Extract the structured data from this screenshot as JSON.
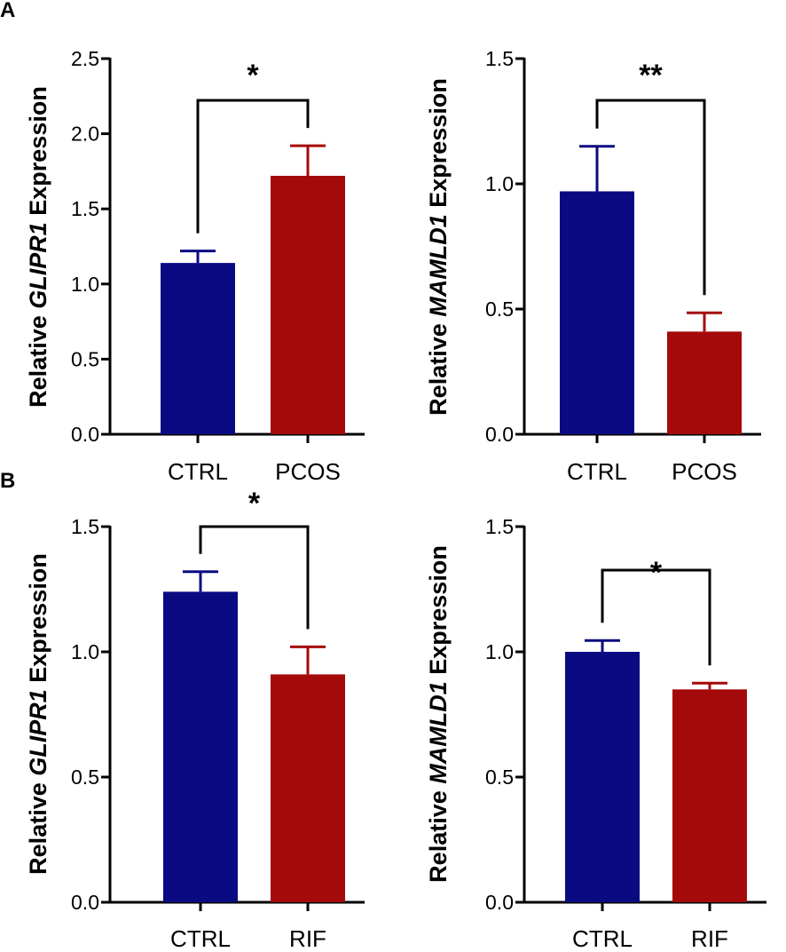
{
  "panels": [
    {
      "letter": "A"
    },
    {
      "letter": "B"
    }
  ],
  "colors": {
    "ctrl": "#0a0a82",
    "case": "#a50a0a",
    "axis": "#000000"
  },
  "chart_data": [
    {
      "type": "bar",
      "panel": "A",
      "categories": [
        "CTRL",
        "PCOS"
      ],
      "values": [
        1.14,
        1.72
      ],
      "errors": [
        0.08,
        0.2
      ],
      "ylabel_prefix": "Relative ",
      "ylabel_gene": "GLIPR1",
      "ylabel_suffix": " Expression",
      "ylim": [
        0,
        2.5
      ],
      "yticks": [
        0.0,
        0.5,
        1.0,
        1.5,
        2.0,
        2.5
      ],
      "significance": "*"
    },
    {
      "type": "bar",
      "panel": "A",
      "categories": [
        "CTRL",
        "PCOS"
      ],
      "values": [
        0.97,
        0.41
      ],
      "errors": [
        0.18,
        0.075
      ],
      "ylabel_prefix": "Relative ",
      "ylabel_gene": "MAMLD1",
      "ylabel_suffix": " Expression",
      "ylim": [
        0,
        1.5
      ],
      "yticks": [
        0.0,
        0.5,
        1.0,
        1.5
      ],
      "significance": "**"
    },
    {
      "type": "bar",
      "panel": "B",
      "categories": [
        "CTRL",
        "RIF"
      ],
      "values": [
        1.24,
        0.91
      ],
      "errors": [
        0.08,
        0.11
      ],
      "ylabel_prefix": "Relative ",
      "ylabel_gene": "GLIPR1",
      "ylabel_suffix": " Expression",
      "ylim": [
        0,
        1.5
      ],
      "yticks": [
        0.0,
        0.5,
        1.0,
        1.5
      ],
      "significance": "*"
    },
    {
      "type": "bar",
      "panel": "B",
      "categories": [
        "CTRL",
        "RIF"
      ],
      "values": [
        1.0,
        0.85
      ],
      "errors": [
        0.045,
        0.025
      ],
      "ylabel_prefix": "Relative ",
      "ylabel_gene": "MAMLD1",
      "ylabel_suffix": " Expression",
      "ylim": [
        0,
        1.5
      ],
      "yticks": [
        0.0,
        0.5,
        1.0,
        1.5
      ],
      "significance": "*"
    }
  ]
}
